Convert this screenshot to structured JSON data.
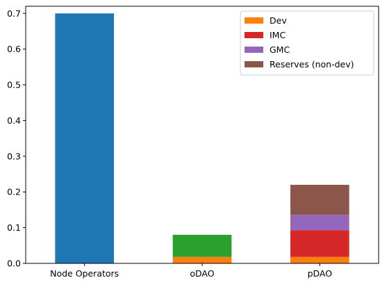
{
  "chart_data": {
    "type": "bar",
    "stacked": true,
    "categories": [
      "Node Operators",
      "oDAO",
      "pDAO"
    ],
    "ylim": [
      0,
      0.72
    ],
    "yticks": [
      0.0,
      0.1,
      0.2,
      0.3,
      0.4,
      0.5,
      0.6,
      0.7
    ],
    "ytick_labels": [
      "0.0",
      "0.1",
      "0.2",
      "0.3",
      "0.4",
      "0.5",
      "0.6",
      "0.7"
    ],
    "grid": false,
    "legend_position": "top-right",
    "segments": [
      {
        "category": "Node Operators",
        "value": 0.7,
        "color": "#1f77b4"
      },
      {
        "category": "oDAO",
        "series": "Dev",
        "value": 0.018,
        "color": "#ff7f0e"
      },
      {
        "category": "oDAO",
        "value": 0.062,
        "color": "#2ca02c"
      },
      {
        "category": "pDAO",
        "series": "Dev",
        "value": 0.018,
        "color": "#ff7f0e"
      },
      {
        "category": "pDAO",
        "series": "IMC",
        "value": 0.075,
        "color": "#d62728"
      },
      {
        "category": "pDAO",
        "series": "GMC",
        "value": 0.043,
        "color": "#9467bd"
      },
      {
        "category": "pDAO",
        "series": "Reserves (non-dev)",
        "value": 0.084,
        "color": "#8c564b"
      }
    ],
    "legend": [
      {
        "name": "Dev",
        "color": "#ff7f0e"
      },
      {
        "name": "IMC",
        "color": "#d62728"
      },
      {
        "name": "GMC",
        "color": "#9467bd"
      },
      {
        "name": "Reserves (non-dev)",
        "color": "#8c564b"
      }
    ]
  }
}
